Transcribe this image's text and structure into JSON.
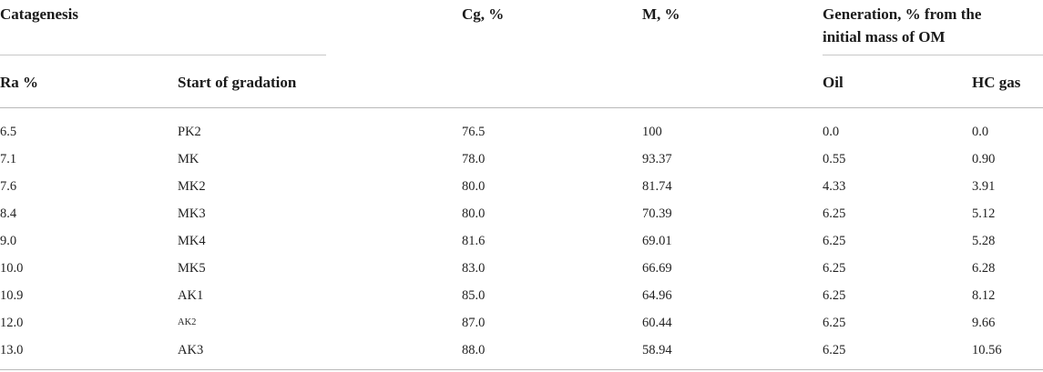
{
  "header": {
    "catagenesis": "Catagenesis",
    "cg": "Cg, %",
    "m": "M, %",
    "generation_line1": "Generation, % from the",
    "generation_line2": "initial mass of OM",
    "ra": "Ra %",
    "start_of_gradation": "Start of gradation",
    "oil": "Oil",
    "hc_gas": "HC gas"
  },
  "rows": [
    {
      "ra": "6.5",
      "gradation": "PK2",
      "cg": "76.5",
      "m": "100",
      "oil": "0.0",
      "hc_gas": "0.0"
    },
    {
      "ra": "7.1",
      "gradation": "MK",
      "cg": "78.0",
      "m": "93.37",
      "oil": "0.55",
      "hc_gas": "0.90"
    },
    {
      "ra": "7.6",
      "gradation": "MK2",
      "cg": "80.0",
      "m": "81.74",
      "oil": "4.33",
      "hc_gas": "3.91"
    },
    {
      "ra": "8.4",
      "gradation": "MK3",
      "cg": "80.0",
      "m": "70.39",
      "oil": "6.25",
      "hc_gas": "5.12"
    },
    {
      "ra": "9.0",
      "gradation": "MK4",
      "cg": "81.6",
      "m": "69.01",
      "oil": "6.25",
      "hc_gas": "5.28"
    },
    {
      "ra": "10.0",
      "gradation": "MK5",
      "cg": "83.0",
      "m": "66.69",
      "oil": "6.25",
      "hc_gas": "6.28"
    },
    {
      "ra": "10.9",
      "gradation": "AK1",
      "cg": "85.0",
      "m": "64.96",
      "oil": "6.25",
      "hc_gas": "8.12"
    },
    {
      "ra": "12.0",
      "gradation": "AK2",
      "cg": "87.0",
      "m": "60.44",
      "oil": "6.25",
      "hc_gas": "9.66"
    },
    {
      "ra": "13.0",
      "gradation": "AK3",
      "cg": "88.0",
      "m": "58.94",
      "oil": "6.25",
      "hc_gas": "10.56"
    }
  ]
}
